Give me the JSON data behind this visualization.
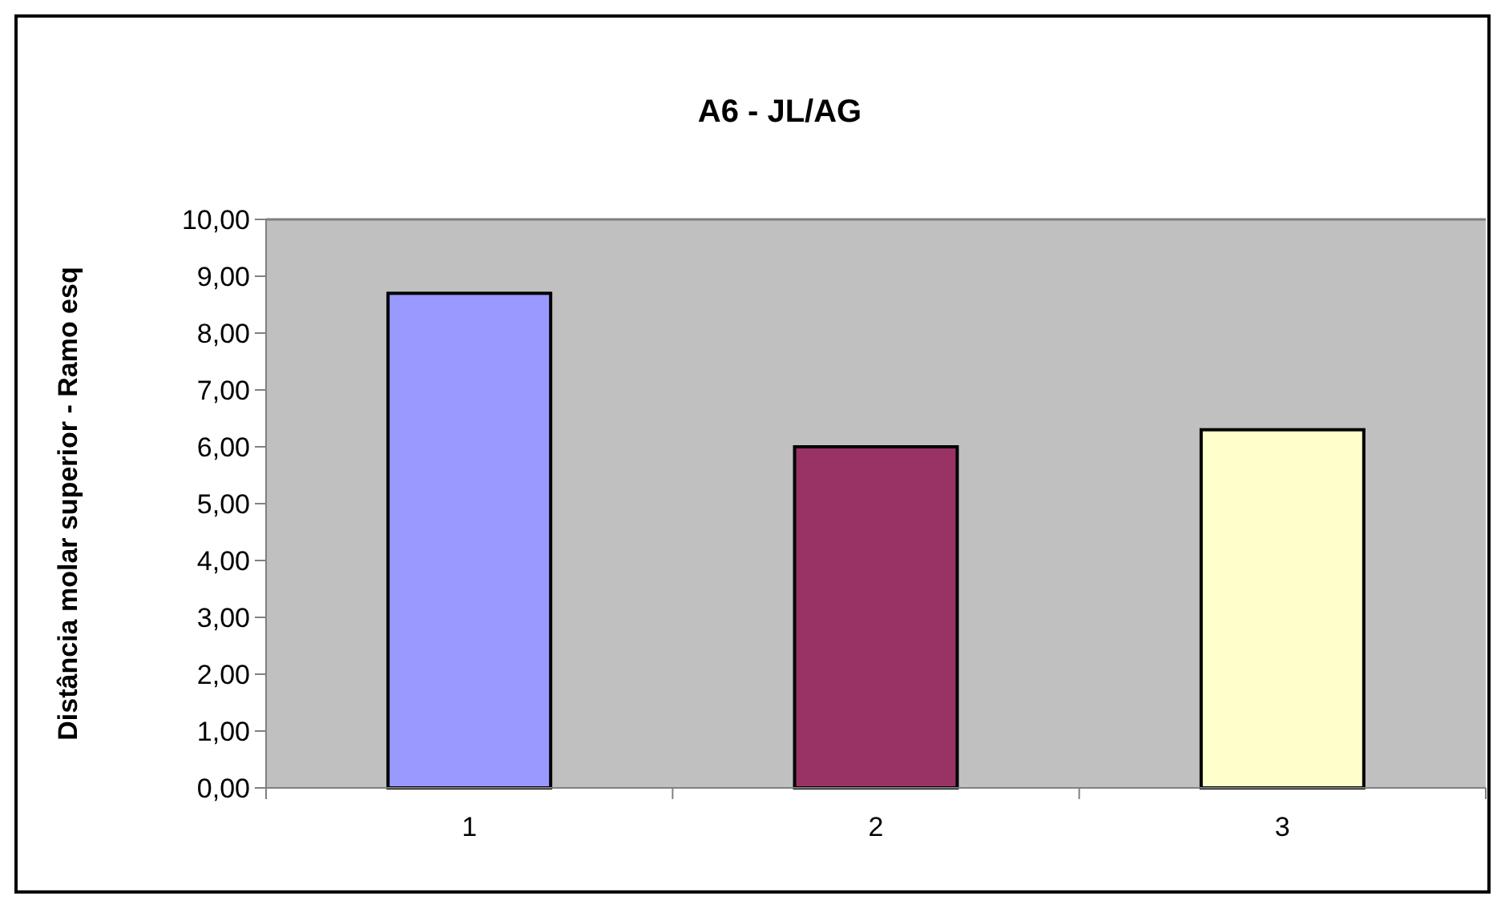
{
  "chart_data": {
    "type": "bar",
    "title": "A6 - JL/AG",
    "ylabel": "Distância molar superior - Ramo esq",
    "categories": [
      "1",
      "2",
      "3"
    ],
    "values": [
      8.7,
      6.0,
      6.3
    ],
    "colors": [
      "#9999ff",
      "#993366",
      "#ffffcc"
    ],
    "ylim": [
      0,
      10
    ],
    "yticks": [
      {
        "value": 0,
        "label": "0,00"
      },
      {
        "value": 1,
        "label": "1,00"
      },
      {
        "value": 2,
        "label": "2,00"
      },
      {
        "value": 3,
        "label": "3,00"
      },
      {
        "value": 4,
        "label": "4,00"
      },
      {
        "value": 5,
        "label": "5,00"
      },
      {
        "value": 6,
        "label": "6,00"
      },
      {
        "value": 7,
        "label": "7,00"
      },
      {
        "value": 8,
        "label": "8,00"
      },
      {
        "value": 9,
        "label": "9,00"
      },
      {
        "value": 10,
        "label": "10,00"
      }
    ],
    "grid": false
  }
}
